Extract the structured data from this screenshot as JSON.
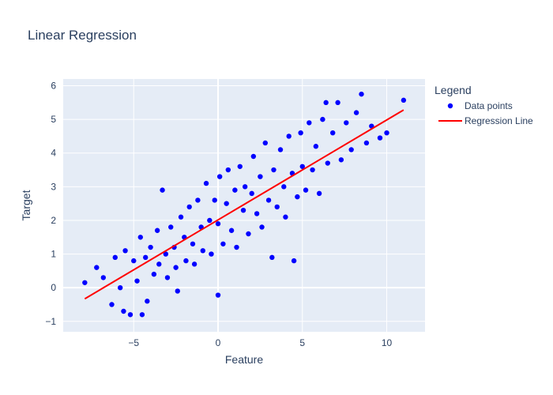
{
  "chart_data": {
    "type": "scatter",
    "title": "Linear Regression",
    "x_label": "Feature",
    "y_label": "Target",
    "legend_title": "Legend",
    "legend_position": "right",
    "grid": true,
    "xlim": [
      -9.18,
      12.27
    ],
    "ylim": [
      -1.31,
      6.2
    ],
    "xticks": [
      {
        "value": -5,
        "label": "−5"
      },
      0,
      5,
      10
    ],
    "yticks": [
      {
        "value": -1,
        "label": "−1"
      },
      0,
      1,
      2,
      3,
      4,
      5,
      6
    ],
    "series": [
      {
        "name": "Data points",
        "color": "#0000ff",
        "mode": "markers",
        "x": [
          -7.9,
          -7.2,
          -6.8,
          -6.3,
          -6.1,
          -5.8,
          -5.6,
          -5.5,
          -5.2,
          -5.0,
          -4.8,
          -4.6,
          -4.5,
          -4.3,
          -4.2,
          -4.0,
          -3.8,
          -3.6,
          -3.5,
          -3.3,
          -3.1,
          -3.0,
          -2.8,
          -2.6,
          -2.5,
          -2.4,
          -2.2,
          -2.0,
          -1.9,
          -1.7,
          -1.5,
          -1.4,
          -1.2,
          -1.0,
          -0.9,
          -0.7,
          -0.5,
          -0.4,
          -0.2,
          0.0,
          0.0,
          0.1,
          0.3,
          0.5,
          0.6,
          0.8,
          1.0,
          1.1,
          1.3,
          1.5,
          1.6,
          1.8,
          2.0,
          2.1,
          2.3,
          2.5,
          2.6,
          2.8,
          3.0,
          3.2,
          3.3,
          3.5,
          3.7,
          3.9,
          4.0,
          4.2,
          4.4,
          4.5,
          4.7,
          4.9,
          5.0,
          5.2,
          5.4,
          5.6,
          5.8,
          6.0,
          6.2,
          6.4,
          6.5,
          6.8,
          7.1,
          7.3,
          7.6,
          7.9,
          8.2,
          8.5,
          8.8,
          9.1,
          9.6,
          10.0,
          11.0
        ],
        "values": [
          0.15,
          0.6,
          0.3,
          -0.5,
          0.9,
          0.0,
          -0.7,
          1.1,
          -0.8,
          0.8,
          0.2,
          1.5,
          -0.8,
          0.9,
          -0.4,
          1.2,
          0.4,
          1.7,
          0.7,
          2.9,
          1.0,
          0.3,
          1.8,
          1.2,
          0.6,
          -0.1,
          2.1,
          1.5,
          0.8,
          2.4,
          1.3,
          0.7,
          2.6,
          1.8,
          1.1,
          3.1,
          2.0,
          1.0,
          2.6,
          -0.22,
          1.9,
          3.3,
          1.3,
          2.5,
          3.5,
          1.7,
          2.9,
          1.2,
          3.6,
          2.3,
          3.0,
          1.6,
          2.8,
          3.9,
          2.2,
          3.3,
          1.8,
          4.3,
          2.6,
          0.9,
          3.5,
          2.4,
          4.1,
          3.0,
          2.1,
          4.5,
          3.4,
          0.8,
          2.7,
          4.6,
          3.6,
          2.9,
          4.9,
          3.5,
          4.2,
          2.8,
          5.0,
          5.5,
          3.7,
          4.6,
          5.5,
          3.8,
          4.9,
          4.1,
          5.2,
          5.75,
          4.3,
          4.8,
          4.45,
          4.6,
          5.57
        ]
      },
      {
        "name": "Regression Line",
        "color": "#ff0000",
        "mode": "lines",
        "x": [
          -7.9,
          11.0
        ],
        "values": [
          -0.33,
          5.28
        ]
      }
    ]
  }
}
